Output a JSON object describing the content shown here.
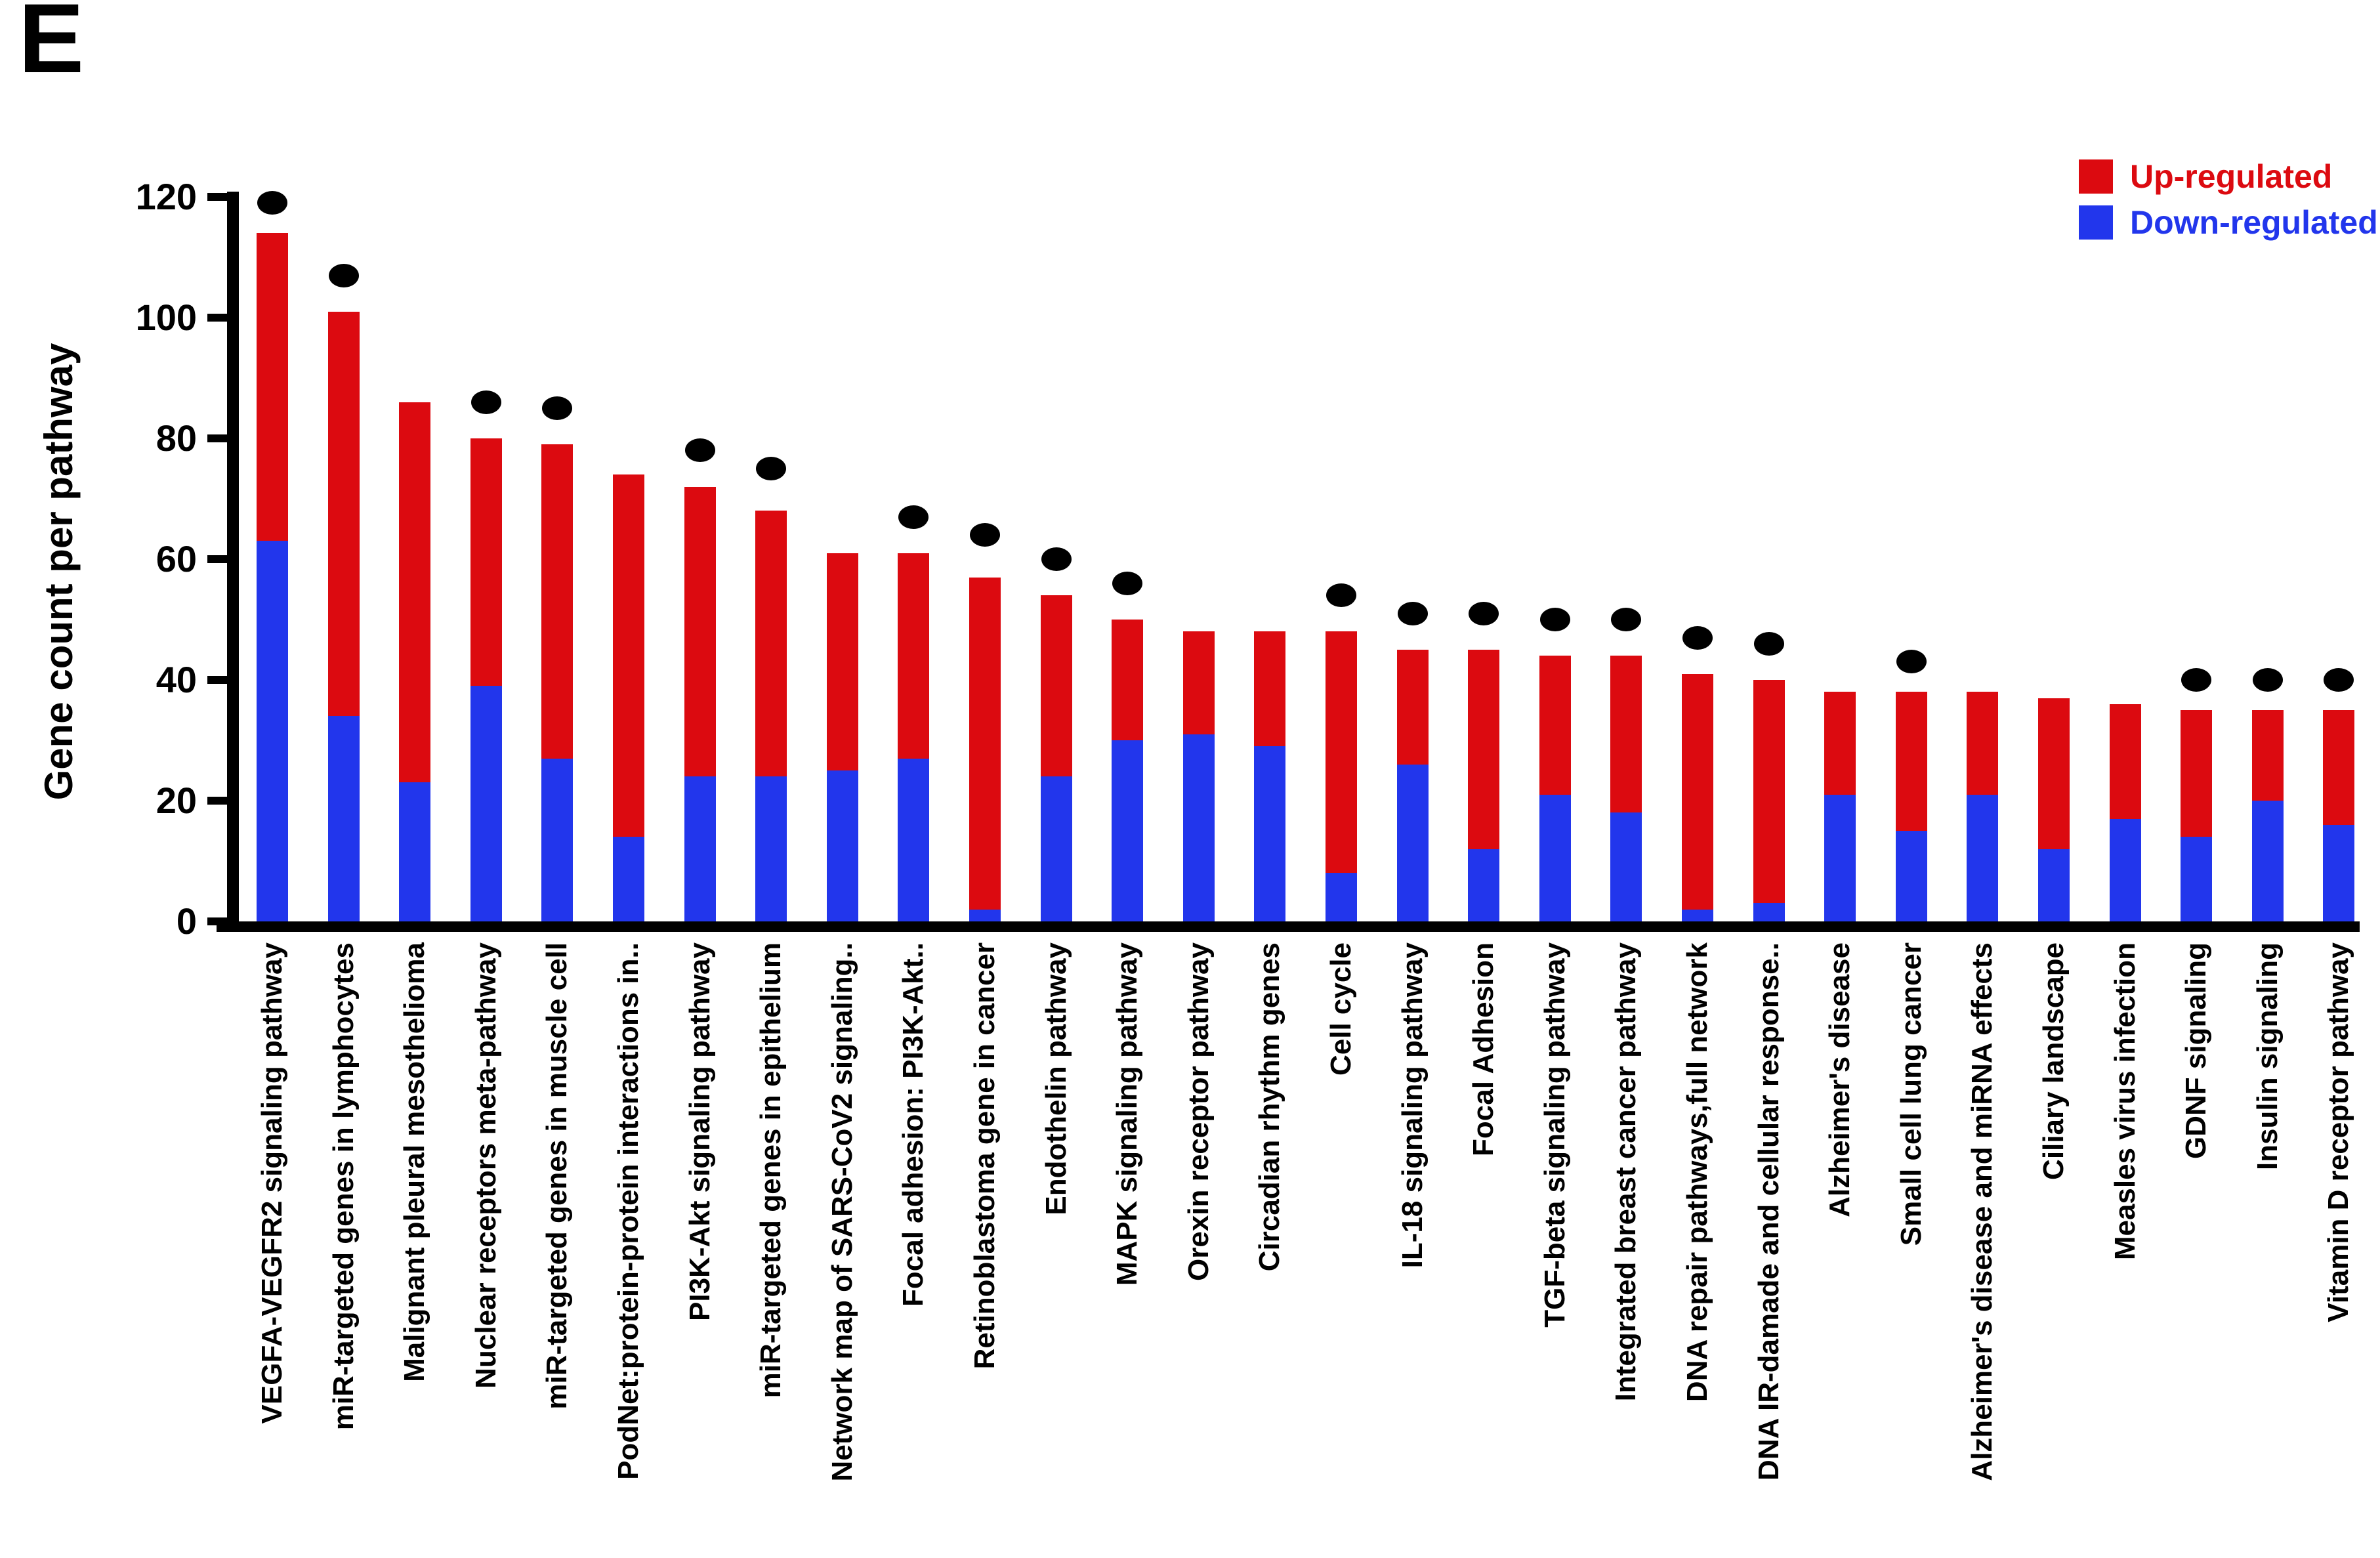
{
  "panel_label": "E",
  "legend": {
    "up_label": "Up-regulated",
    "down_label": "Down-regulated"
  },
  "colors": {
    "up": "#dc0a10",
    "down": "#2236ec",
    "dot": "#000000",
    "axis": "#000000",
    "up_text": "#dc0a10",
    "down_text": "#2236ec"
  },
  "chart_data": {
    "type": "bar",
    "stacked": true,
    "title": "",
    "xlabel": "",
    "ylabel": "Gene count per pathway",
    "ylim": [
      0,
      120
    ],
    "yticks": [
      0,
      20,
      40,
      60,
      80,
      100,
      120
    ],
    "grid": false,
    "legend_position": "top-right",
    "marker_note": "black dot above bar marks significant pathways",
    "categories": [
      "VEGFA-VEGFR2 signaling pathway",
      "miR-targeted genes in lymphocytes",
      "Malignant pleural mesothelioma",
      "Nuclear receptors meta-pathway",
      "miR-targeted genes in muscle cell",
      "PodNet:protein-protein interactions in..",
      "PI3K-Akt signaling pathway",
      "miR-targeted genes in epithelium",
      "Network map of SARS-CoV2 signaling..",
      "Focal adhesion: PI3K-Akt..",
      "Retinoblastoma gene in cancer",
      "Endothelin pathway",
      "MAPK signaling pathway",
      "Orexin receptor pathway",
      "Circadian rhythm genes",
      "Cell cycle",
      "IL-18 signaling pathway",
      "Focal Adhesion",
      "TGF-beta signaling pathway",
      "Integrated breast cancer pathway",
      "DNA repair pathways,full network",
      "DNA IR-damade and cellular response..",
      "Alzheimer's disease",
      "Small cell lung cancer",
      "Alzheimer's disease and miRNA effects",
      "Ciliary landscape",
      "Measles virus infection",
      "GDNF signaling",
      "Insulin signaling",
      "Vitamin D receptor pathway"
    ],
    "series": [
      {
        "name": "Down-regulated",
        "color_key": "down",
        "values": [
          63,
          34,
          23,
          39,
          27,
          14,
          24,
          24,
          25,
          27,
          2,
          24,
          30,
          31,
          29,
          8,
          26,
          12,
          21,
          18,
          2,
          3,
          21,
          15,
          21,
          12,
          17,
          14,
          20,
          16
        ]
      },
      {
        "name": "Up-regulated",
        "color_key": "up",
        "values": [
          51,
          67,
          63,
          41,
          52,
          60,
          48,
          44,
          36,
          34,
          55,
          30,
          20,
          17,
          19,
          40,
          19,
          33,
          23,
          26,
          39,
          37,
          17,
          23,
          17,
          25,
          19,
          21,
          15,
          19
        ]
      }
    ],
    "totals": [
      114,
      101,
      86,
      80,
      79,
      74,
      72,
      68,
      61,
      61,
      57,
      54,
      50,
      48,
      48,
      48,
      45,
      45,
      44,
      44,
      41,
      40,
      38,
      38,
      38,
      37,
      36,
      35,
      35,
      35
    ],
    "dot_markers": [
      119,
      107,
      null,
      86,
      85,
      null,
      78,
      75,
      null,
      67,
      64,
      60,
      56,
      null,
      null,
      54,
      51,
      51,
      50,
      50,
      47,
      46,
      null,
      43,
      null,
      null,
      null,
      40,
      40,
      40
    ]
  }
}
